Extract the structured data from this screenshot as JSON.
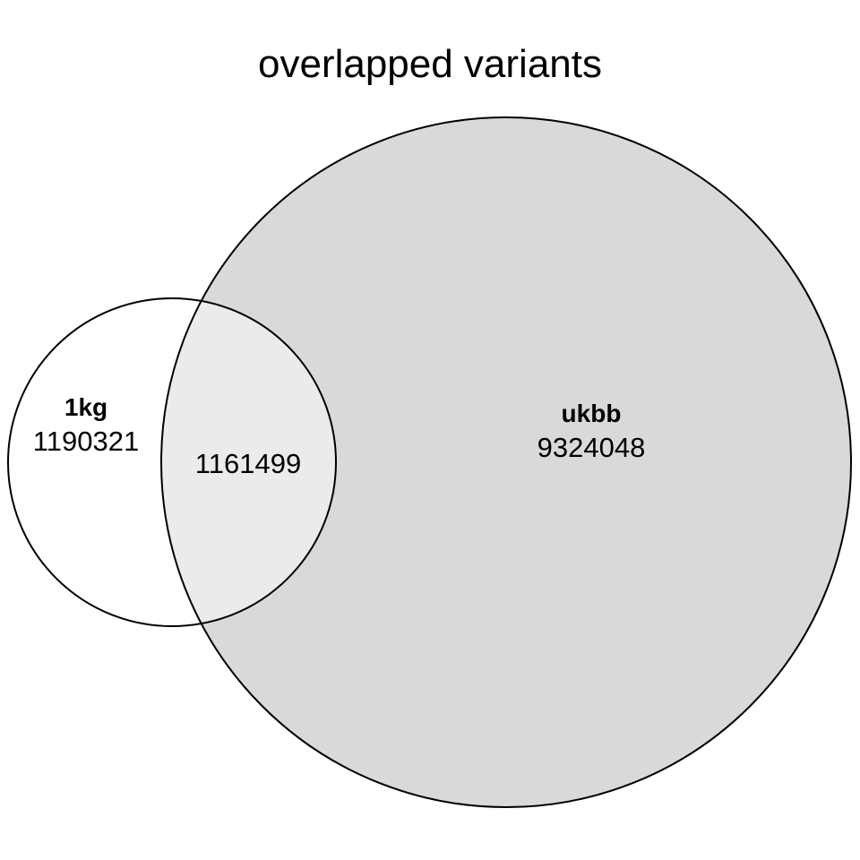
{
  "title": "overlapped variants",
  "sets": {
    "left": {
      "name": "1kg",
      "only_count": "1190321",
      "fill_color": "#ffffff"
    },
    "right": {
      "name": "ukbb",
      "only_count": "9324048",
      "fill_color": "#d9d9d9"
    }
  },
  "intersection": {
    "count": "1161499",
    "fill_color": "#ebebeb"
  },
  "stroke_color": "#000000"
}
